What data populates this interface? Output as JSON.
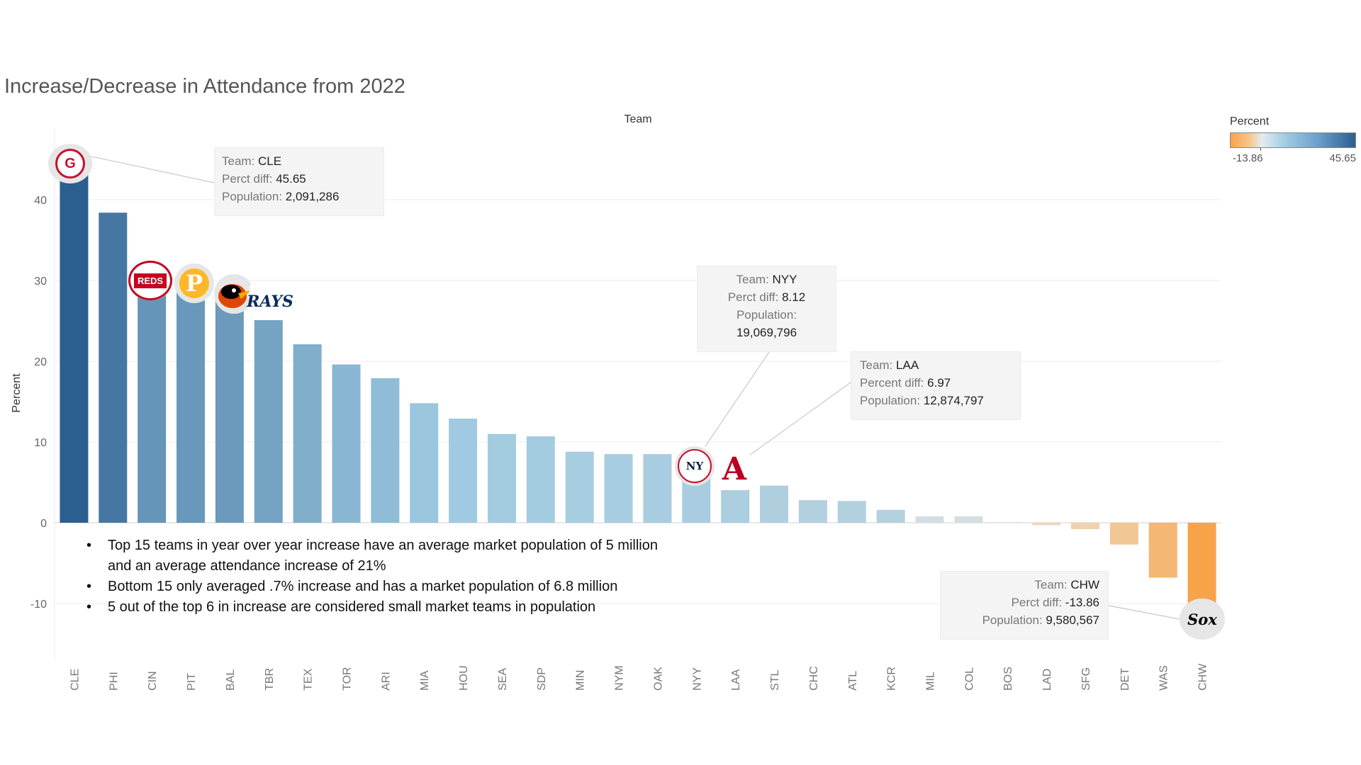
{
  "title": "Increase/Decrease in Attendance from 2022",
  "team_header": "Team",
  "legend": {
    "title": "Percent",
    "min_label": "-13.86",
    "max_label": "45.65"
  },
  "colors": {
    "max": "#2b5f8f",
    "mid": "#9ecae1",
    "neutral": "#e2e2e2",
    "min": "#f7a34a"
  },
  "chart_data": {
    "type": "bar",
    "ylabel": "Percent",
    "xlabel": "",
    "ylim": [
      -17,
      48
    ],
    "yticks": [
      -10,
      0,
      10,
      20,
      30,
      40
    ],
    "grid": true,
    "legend_position": "top-right",
    "categories": [
      "CLE",
      "PHI",
      "CIN",
      "PIT",
      "BAL",
      "TBR",
      "TEX",
      "TOR",
      "ARI",
      "MIA",
      "HOU",
      "SEA",
      "SDP",
      "MIN",
      "NYM",
      "OAK",
      "NYY",
      "LAA",
      "STL",
      "CHC",
      "ATL",
      "KCR",
      "MIL",
      "COL",
      "BOS",
      "LAD",
      "SFG",
      "DET",
      "WAS",
      "CHW"
    ],
    "values": [
      45.65,
      38.4,
      29.4,
      28.6,
      28.0,
      25.4,
      22.1,
      19.6,
      17.9,
      14.8,
      12.9,
      11.0,
      10.7,
      8.8,
      8.5,
      8.5,
      8.12,
      6.97,
      4.6,
      2.8,
      2.7,
      1.6,
      0.8,
      0.8,
      0.1,
      -0.3,
      -0.8,
      -2.7,
      -6.8,
      -13.86
    ]
  },
  "tooltips": [
    {
      "lines": [
        {
          "k": "Team: ",
          "v": "CLE"
        },
        {
          "k": "Perct diff: ",
          "v": "45.65"
        },
        {
          "k": "Population: ",
          "v": "2,091,286"
        }
      ]
    },
    {
      "lines": [
        {
          "k": "Team: ",
          "v": "NYY"
        },
        {
          "k": "Perct diff: ",
          "v": "8.12"
        },
        {
          "k": "Population:",
          "v": ""
        },
        {
          "k": "",
          "v": "19,069,796"
        }
      ]
    },
    {
      "lines": [
        {
          "k": "Team: ",
          "v": "LAA"
        },
        {
          "k": "Percent diff: ",
          "v": "6.97"
        },
        {
          "k": "Population: ",
          "v": "12,874,797"
        }
      ]
    },
    {
      "lines": [
        {
          "k": "Team: ",
          "v": "CHW"
        },
        {
          "k": "Perct diff: ",
          "v": "-13.86"
        },
        {
          "k": "Population: ",
          "v": "9,580,567"
        }
      ]
    }
  ],
  "notes": [
    "Top 15 teams in year over year increase have an average market population of 5 million and an average attendance increase of 21%",
    "Bottom 15 only averaged .7% increase and has a market population of 6.8 million",
    "5 out of the top 6 in increase are considered small market teams in population"
  ],
  "logos": {
    "cle": "G",
    "cin": "REDS",
    "pit": "P",
    "rays": "RAYS",
    "nyy": "NY",
    "laa": "A",
    "chw": "Sox"
  }
}
